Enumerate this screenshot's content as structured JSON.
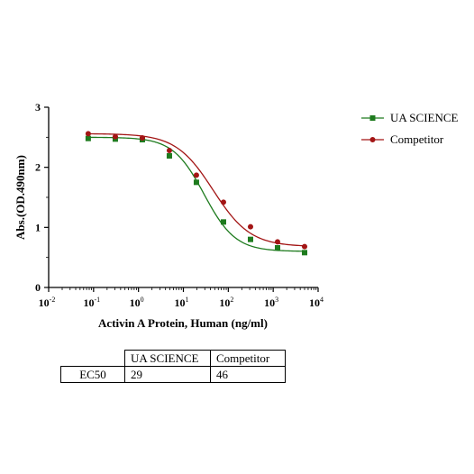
{
  "chart_data": {
    "type": "line",
    "xlabel": "Activin A Protein, Human (ng/ml)",
    "ylabel": "Abs.(OD.490nm)",
    "xscale": "log",
    "xlim": [
      0.01,
      10000
    ],
    "ylim": [
      0,
      3
    ],
    "x_ticks": [
      {
        "value": 0.01,
        "base": "10",
        "exp": "-2"
      },
      {
        "value": 0.1,
        "base": "10",
        "exp": "-1"
      },
      {
        "value": 1,
        "base": "10",
        "exp": "0"
      },
      {
        "value": 10,
        "base": "10",
        "exp": "1"
      },
      {
        "value": 100,
        "base": "10",
        "exp": "2"
      },
      {
        "value": 1000,
        "base": "10",
        "exp": "3"
      },
      {
        "value": 10000,
        "base": "10",
        "exp": "4"
      }
    ],
    "y_ticks": [
      {
        "value": 0,
        "label": "0"
      },
      {
        "value": 1,
        "label": "1"
      },
      {
        "value": 2,
        "label": "2"
      },
      {
        "value": 3,
        "label": "3"
      }
    ],
    "grid": false,
    "legend_position": "top-right",
    "series": [
      {
        "name": "UA SCIENCE",
        "color": "#1e7b1e",
        "marker": "square",
        "x": [
          0.076,
          0.305,
          1.22,
          4.88,
          19.5,
          78.1,
          312.5,
          1250,
          5000
        ],
        "y": [
          2.48,
          2.47,
          2.46,
          2.19,
          1.75,
          1.09,
          0.8,
          0.66,
          0.58
        ],
        "fit": {
          "top": 2.5,
          "bottom": 0.6,
          "ec50": 29,
          "hill": 1.25
        }
      },
      {
        "name": "Competitor",
        "color": "#a31515",
        "marker": "circle",
        "x": [
          0.076,
          0.305,
          1.22,
          4.88,
          19.5,
          78.1,
          312.5,
          1250,
          5000
        ],
        "y": [
          2.56,
          2.51,
          2.49,
          2.28,
          1.87,
          1.42,
          1.01,
          0.76,
          0.68
        ],
        "fit": {
          "top": 2.56,
          "bottom": 0.68,
          "ec50": 46,
          "hill": 1.05
        }
      }
    ],
    "table": {
      "headers": [
        "",
        "UA SCIENCE",
        "Competitor"
      ],
      "rows": [
        [
          "EC50",
          "29",
          "46"
        ]
      ]
    }
  }
}
